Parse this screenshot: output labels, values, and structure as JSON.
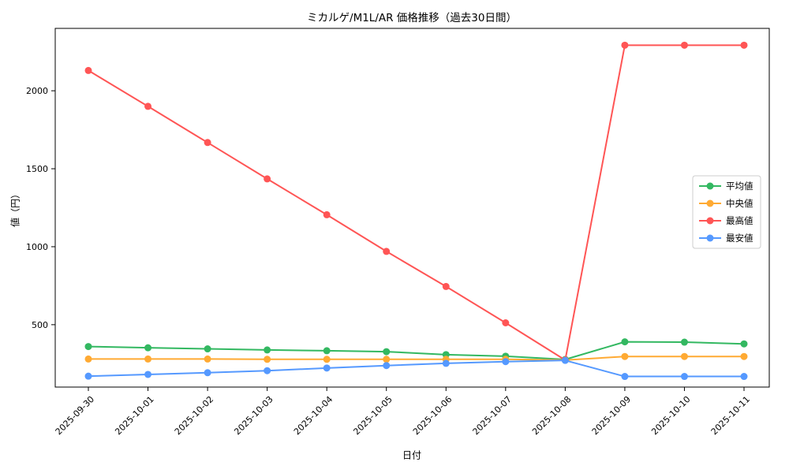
{
  "chart_data": {
    "type": "line",
    "title": "ミカルゲ/M1L/AR 価格推移（過去30日間）",
    "xlabel": "日付",
    "ylabel": "値（円）",
    "x": [
      "2025-09-30",
      "2025-10-01",
      "2025-10-02",
      "2025-10-03",
      "2025-10-04",
      "2025-10-05",
      "2025-10-06",
      "2025-10-07",
      "2025-10-08",
      "2025-10-09",
      "2025-10-10",
      "2025-10-11"
    ],
    "ylim": [
      100,
      2400
    ],
    "yticks": [
      500,
      1000,
      1500,
      2000
    ],
    "grid": false,
    "legend_position": "center right",
    "axis_color": "#000000",
    "legend_border_color": "#cccccc",
    "series": [
      {
        "name": "平均値",
        "color": "#33b861",
        "values": [
          360,
          352,
          345,
          338,
          333,
          327,
          308,
          298,
          277,
          390,
          388,
          377
        ]
      },
      {
        "name": "中央値",
        "color": "#ffaa33",
        "values": [
          280,
          280,
          280,
          278,
          278,
          278,
          278,
          278,
          273,
          296,
          296,
          296
        ]
      },
      {
        "name": "最高値",
        "color": "#ff5555",
        "values": [
          2130,
          1900,
          1668,
          1435,
          1205,
          970,
          745,
          512,
          273,
          2292,
          2292,
          2292
        ]
      },
      {
        "name": "最安値",
        "color": "#5599ff",
        "values": [
          170,
          181,
          192,
          205,
          222,
          238,
          252,
          263,
          271,
          168,
          168,
          168
        ]
      }
    ]
  }
}
